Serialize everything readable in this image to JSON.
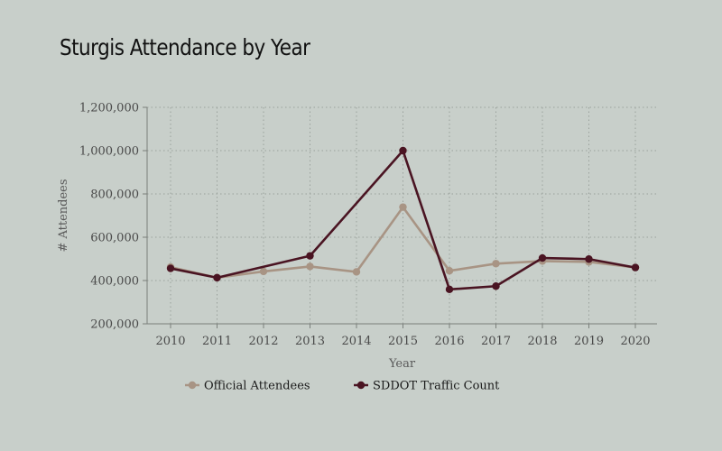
{
  "title": "Sturgis Attendance by Year",
  "chart_data": {
    "type": "line",
    "title": "Sturgis Attendance by Year",
    "xlabel": "Year",
    "ylabel": "# Attendees",
    "x": [
      "2010",
      "2011",
      "2012",
      "2013",
      "2014",
      "2015",
      "2016",
      "2017",
      "2018",
      "2019",
      "2020"
    ],
    "ylim": [
      200000,
      1200000
    ],
    "yticks": [
      200000,
      400000,
      600000,
      800000,
      1000000,
      1200000
    ],
    "ytick_labels": [
      "200,000",
      "400,000",
      "600,000",
      "800,000",
      "1,000,000",
      "1,200,000"
    ],
    "grid": true,
    "legend": "bottom-left",
    "series": [
      {
        "name": "Official Attendees",
        "color": "#a89484",
        "values": [
          462000,
          413000,
          442000,
          465000,
          440000,
          739000,
          445000,
          478000,
          490000,
          486000,
          460000
        ]
      },
      {
        "name": "SDDOT Traffic Count",
        "color": "#4a1422",
        "values": [
          456000,
          413000,
          null,
          514000,
          null,
          1000000,
          359000,
          374000,
          504000,
          499000,
          460000
        ]
      }
    ]
  }
}
